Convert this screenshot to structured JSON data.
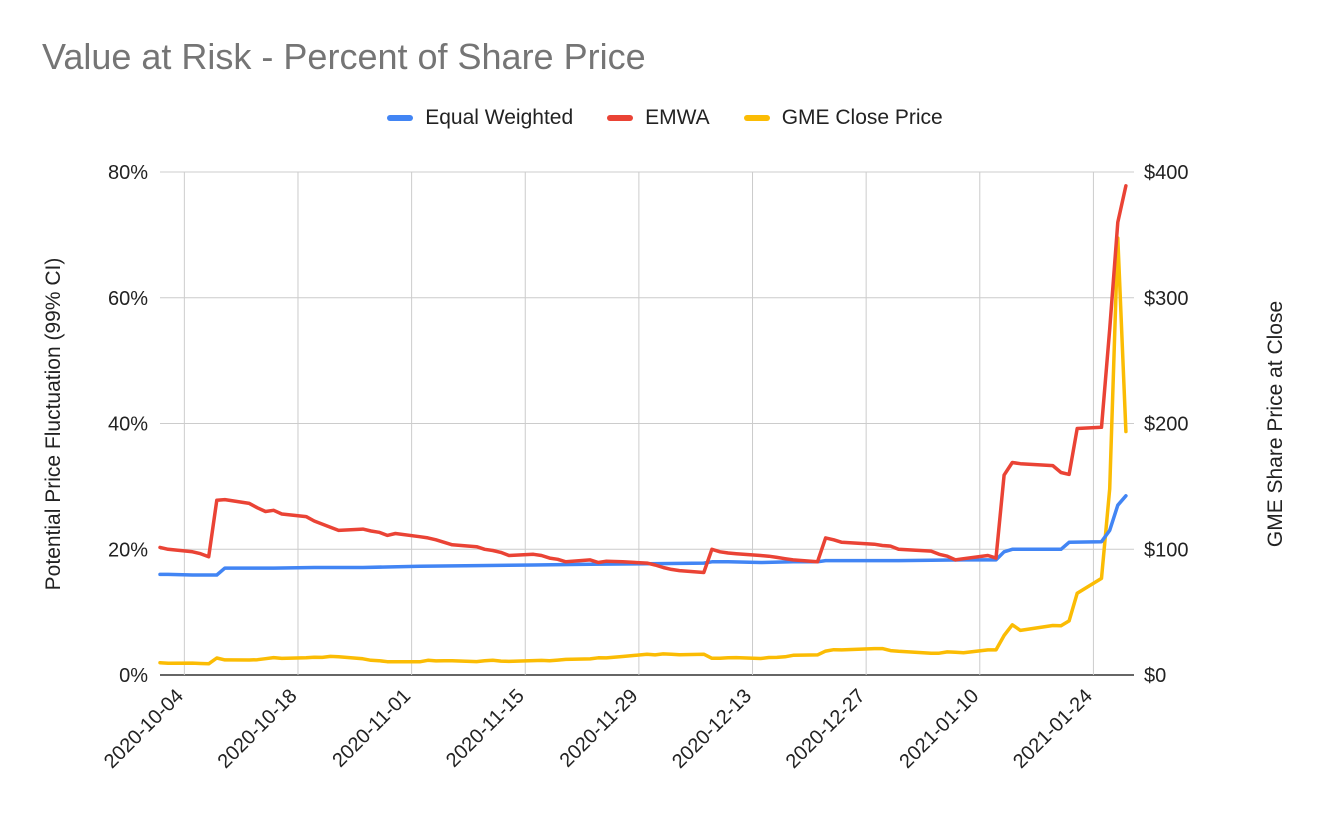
{
  "chart_data": {
    "type": "line",
    "title": "Value at Risk - Percent of Share Price",
    "ylabel": "Potential Price Fluctuation (99% CI)",
    "y2label": "GME Share Price at Close",
    "ylim": [
      0,
      0.8
    ],
    "y2lim": [
      0,
      400
    ],
    "yticks": [
      "0%",
      "20%",
      "40%",
      "60%",
      "80%"
    ],
    "y2ticks": [
      "$0",
      "$100",
      "$200",
      "$300",
      "$400"
    ],
    "xticks": [
      "2020-10-04",
      "2020-10-18",
      "2020-11-01",
      "2020-11-15",
      "2020-11-29",
      "2020-12-13",
      "2020-12-27",
      "2021-01-10",
      "2021-01-24"
    ],
    "x_range": [
      "2020-10-01",
      "2021-01-29"
    ],
    "grid": true,
    "legend_position": "top",
    "series": [
      {
        "name": "Equal Weighted",
        "color": "#4285F4",
        "axis": "left",
        "points": [
          [
            "2020-10-01",
            0.16
          ],
          [
            "2020-10-02",
            0.16
          ],
          [
            "2020-10-05",
            0.159
          ],
          [
            "2020-10-06",
            0.159
          ],
          [
            "2020-10-07",
            0.159
          ],
          [
            "2020-10-08",
            0.159
          ],
          [
            "2020-10-09",
            0.17
          ],
          [
            "2020-10-12",
            0.17
          ],
          [
            "2020-10-15",
            0.17
          ],
          [
            "2020-10-20",
            0.171
          ],
          [
            "2020-10-26",
            0.171
          ],
          [
            "2020-11-02",
            0.173
          ],
          [
            "2020-11-09",
            0.174
          ],
          [
            "2020-11-16",
            0.175
          ],
          [
            "2020-11-23",
            0.176
          ],
          [
            "2020-11-30",
            0.177
          ],
          [
            "2020-12-07",
            0.178
          ],
          [
            "2020-12-08",
            0.18
          ],
          [
            "2020-12-10",
            0.18
          ],
          [
            "2020-12-14",
            0.179
          ],
          [
            "2020-12-18",
            0.18
          ],
          [
            "2020-12-21",
            0.18
          ],
          [
            "2020-12-22",
            0.182
          ],
          [
            "2020-12-31",
            0.182
          ],
          [
            "2021-01-08",
            0.183
          ],
          [
            "2021-01-12",
            0.183
          ],
          [
            "2021-01-13",
            0.196
          ],
          [
            "2021-01-14",
            0.2
          ],
          [
            "2021-01-20",
            0.2
          ],
          [
            "2021-01-21",
            0.211
          ],
          [
            "2021-01-25",
            0.212
          ],
          [
            "2021-01-26",
            0.23
          ],
          [
            "2021-01-27",
            0.27
          ],
          [
            "2021-01-28",
            0.285
          ]
        ]
      },
      {
        "name": "EMWA",
        "color": "#EA4335",
        "axis": "left",
        "points": [
          [
            "2020-10-01",
            0.203
          ],
          [
            "2020-10-02",
            0.2
          ],
          [
            "2020-10-05",
            0.196
          ],
          [
            "2020-10-06",
            0.193
          ],
          [
            "2020-10-07",
            0.188
          ],
          [
            "2020-10-08",
            0.278
          ],
          [
            "2020-10-09",
            0.279
          ],
          [
            "2020-10-12",
            0.273
          ],
          [
            "2020-10-13",
            0.266
          ],
          [
            "2020-10-14",
            0.26
          ],
          [
            "2020-10-15",
            0.262
          ],
          [
            "2020-10-16",
            0.256
          ],
          [
            "2020-10-19",
            0.252
          ],
          [
            "2020-10-20",
            0.245
          ],
          [
            "2020-10-21",
            0.24
          ],
          [
            "2020-10-22",
            0.235
          ],
          [
            "2020-10-23",
            0.23
          ],
          [
            "2020-10-26",
            0.232
          ],
          [
            "2020-10-27",
            0.229
          ],
          [
            "2020-10-28",
            0.227
          ],
          [
            "2020-10-29",
            0.222
          ],
          [
            "2020-10-30",
            0.225
          ],
          [
            "2020-11-02",
            0.22
          ],
          [
            "2020-11-03",
            0.218
          ],
          [
            "2020-11-04",
            0.215
          ],
          [
            "2020-11-05",
            0.211
          ],
          [
            "2020-11-06",
            0.207
          ],
          [
            "2020-11-09",
            0.204
          ],
          [
            "2020-11-10",
            0.2
          ],
          [
            "2020-11-11",
            0.198
          ],
          [
            "2020-11-12",
            0.195
          ],
          [
            "2020-11-13",
            0.19
          ],
          [
            "2020-11-16",
            0.192
          ],
          [
            "2020-11-17",
            0.19
          ],
          [
            "2020-11-18",
            0.186
          ],
          [
            "2020-11-19",
            0.184
          ],
          [
            "2020-11-20",
            0.18
          ],
          [
            "2020-11-23",
            0.183
          ],
          [
            "2020-11-24",
            0.179
          ],
          [
            "2020-11-25",
            0.181
          ],
          [
            "2020-11-27",
            0.18
          ],
          [
            "2020-11-30",
            0.178
          ],
          [
            "2020-12-01",
            0.175
          ],
          [
            "2020-12-02",
            0.171
          ],
          [
            "2020-12-03",
            0.168
          ],
          [
            "2020-12-04",
            0.166
          ],
          [
            "2020-12-07",
            0.163
          ],
          [
            "2020-12-08",
            0.2
          ],
          [
            "2020-12-09",
            0.196
          ],
          [
            "2020-12-10",
            0.194
          ],
          [
            "2020-12-11",
            0.193
          ],
          [
            "2020-12-14",
            0.19
          ],
          [
            "2020-12-15",
            0.189
          ],
          [
            "2020-12-16",
            0.187
          ],
          [
            "2020-12-17",
            0.185
          ],
          [
            "2020-12-18",
            0.183
          ],
          [
            "2020-12-21",
            0.18
          ],
          [
            "2020-12-22",
            0.218
          ],
          [
            "2020-12-23",
            0.215
          ],
          [
            "2020-12-24",
            0.211
          ],
          [
            "2020-12-28",
            0.208
          ],
          [
            "2020-12-29",
            0.206
          ],
          [
            "2020-12-30",
            0.205
          ],
          [
            "2020-12-31",
            0.2
          ],
          [
            "2021-01-04",
            0.197
          ],
          [
            "2021-01-05",
            0.192
          ],
          [
            "2021-01-06",
            0.189
          ],
          [
            "2021-01-07",
            0.183
          ],
          [
            "2021-01-08",
            0.185
          ],
          [
            "2021-01-11",
            0.19
          ],
          [
            "2021-01-12",
            0.186
          ],
          [
            "2021-01-13",
            0.318
          ],
          [
            "2021-01-14",
            0.338
          ],
          [
            "2021-01-15",
            0.336
          ],
          [
            "2021-01-19",
            0.333
          ],
          [
            "2021-01-20",
            0.322
          ],
          [
            "2021-01-21",
            0.319
          ],
          [
            "2021-01-22",
            0.392
          ],
          [
            "2021-01-25",
            0.394
          ],
          [
            "2021-01-26",
            0.55
          ],
          [
            "2021-01-27",
            0.72
          ],
          [
            "2021-01-28",
            0.778
          ]
        ]
      },
      {
        "name": "GME Close Price",
        "color": "#FBBC04",
        "axis": "right",
        "points": [
          [
            "2020-10-01",
            9.77
          ],
          [
            "2020-10-02",
            9.39
          ],
          [
            "2020-10-05",
            9.46
          ],
          [
            "2020-10-06",
            9.13
          ],
          [
            "2020-10-07",
            8.88
          ],
          [
            "2020-10-08",
            13.49
          ],
          [
            "2020-10-09",
            12.02
          ],
          [
            "2020-10-12",
            11.95
          ],
          [
            "2020-10-13",
            12.2
          ],
          [
            "2020-10-14",
            12.97
          ],
          [
            "2020-10-15",
            13.86
          ],
          [
            "2020-10-16",
            13.22
          ],
          [
            "2020-10-19",
            13.7
          ],
          [
            "2020-10-20",
            14.16
          ],
          [
            "2020-10-21",
            14.01
          ],
          [
            "2020-10-22",
            14.79
          ],
          [
            "2020-10-23",
            14.5
          ],
          [
            "2020-10-26",
            12.9
          ],
          [
            "2020-10-27",
            11.72
          ],
          [
            "2020-10-28",
            11.4
          ],
          [
            "2020-10-29",
            10.6
          ],
          [
            "2020-10-30",
            10.6
          ],
          [
            "2020-11-02",
            10.46
          ],
          [
            "2020-11-03",
            11.7
          ],
          [
            "2020-11-04",
            11.2
          ],
          [
            "2020-11-05",
            11.37
          ],
          [
            "2020-11-06",
            11.4
          ],
          [
            "2020-11-09",
            10.67
          ],
          [
            "2020-11-10",
            11.3
          ],
          [
            "2020-11-11",
            11.7
          ],
          [
            "2020-11-12",
            11.03
          ],
          [
            "2020-11-13",
            10.8
          ],
          [
            "2020-11-16",
            11.49
          ],
          [
            "2020-11-17",
            11.59
          ],
          [
            "2020-11-18",
            11.29
          ],
          [
            "2020-11-19",
            11.87
          ],
          [
            "2020-11-20",
            12.44
          ],
          [
            "2020-11-23",
            12.79
          ],
          [
            "2020-11-24",
            13.64
          ],
          [
            "2020-11-25",
            13.59
          ],
          [
            "2020-11-27",
            14.72
          ],
          [
            "2020-11-30",
            16.56
          ],
          [
            "2020-12-01",
            16.0
          ],
          [
            "2020-12-02",
            16.81
          ],
          [
            "2020-12-03",
            16.58
          ],
          [
            "2020-12-04",
            16.12
          ],
          [
            "2020-12-07",
            16.56
          ],
          [
            "2020-12-08",
            13.3
          ],
          [
            "2020-12-09",
            13.3
          ],
          [
            "2020-12-10",
            13.66
          ],
          [
            "2020-12-11",
            13.85
          ],
          [
            "2020-12-14",
            13.13
          ],
          [
            "2020-12-15",
            13.9
          ],
          [
            "2020-12-16",
            14.0
          ],
          [
            "2020-12-17",
            14.47
          ],
          [
            "2020-12-18",
            15.63
          ],
          [
            "2020-12-21",
            16.0
          ],
          [
            "2020-12-22",
            19.0
          ],
          [
            "2020-12-23",
            20.15
          ],
          [
            "2020-12-24",
            20.0
          ],
          [
            "2020-12-28",
            20.99
          ],
          [
            "2020-12-29",
            20.99
          ],
          [
            "2020-12-30",
            19.38
          ],
          [
            "2020-12-31",
            18.84
          ],
          [
            "2021-01-04",
            17.25
          ],
          [
            "2021-01-05",
            17.37
          ],
          [
            "2021-01-06",
            18.36
          ],
          [
            "2021-01-07",
            18.08
          ],
          [
            "2021-01-08",
            17.69
          ],
          [
            "2021-01-11",
            19.94
          ],
          [
            "2021-01-12",
            19.95
          ],
          [
            "2021-01-13",
            31.4
          ],
          [
            "2021-01-14",
            39.91
          ],
          [
            "2021-01-15",
            35.5
          ],
          [
            "2021-01-19",
            39.36
          ],
          [
            "2021-01-20",
            39.12
          ],
          [
            "2021-01-21",
            43.03
          ],
          [
            "2021-01-22",
            65.01
          ],
          [
            "2021-01-25",
            76.79
          ],
          [
            "2021-01-26",
            147.98
          ],
          [
            "2021-01-27",
            347.51
          ],
          [
            "2021-01-28",
            193.6
          ]
        ]
      }
    ]
  }
}
